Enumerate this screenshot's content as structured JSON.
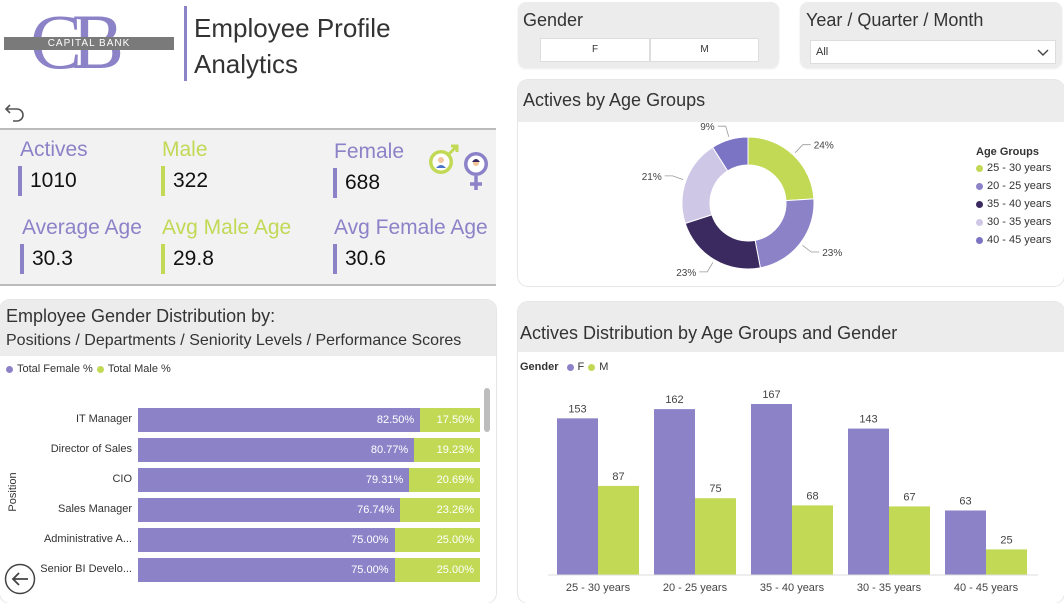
{
  "colors": {
    "purple": "#8c82c8",
    "lime": "#c1d955",
    "dark_purple": "#3b2a5f",
    "lavender": "#cfc7e6",
    "mid_purple": "#7b73c4",
    "panel_gray": "#ececec"
  },
  "logo": {
    "monogram": "CB",
    "bank_name": "CAPITAL BANK"
  },
  "header": {
    "title_line1": "Employee Profile",
    "title_line2": "Analytics"
  },
  "slicers": {
    "gender_title": "Gender",
    "gender_options": [
      "F",
      "M"
    ],
    "period_title": "Year / Quarter / Month",
    "period_selected": "All"
  },
  "kpis": {
    "actives_label": "Actives",
    "actives_value": "1010",
    "male_label": "Male",
    "male_value": "322",
    "female_label": "Female",
    "female_value": "688",
    "avg_age_label": "Average Age",
    "avg_age_value": "30.3",
    "avg_male_label": "Avg Male Age",
    "avg_male_value": "29.8",
    "avg_female_label": "Avg Female Age",
    "avg_female_value": "30.6"
  },
  "age_donut": {
    "title": "Actives by Age Groups",
    "legend_title": "Age Groups",
    "chart_data": {
      "type": "pie",
      "categories": [
        "25 - 30 years",
        "20 - 25 years",
        "35 - 40 years",
        "30 - 35 years",
        "40 - 45 years"
      ],
      "values": [
        24,
        23,
        23,
        21,
        9
      ],
      "labels": [
        "24%",
        "23%",
        "23%",
        "21%",
        "9%"
      ],
      "colors": [
        "#c1d955",
        "#8c82c8",
        "#3b2a5f",
        "#cfc7e6",
        "#7b73c4"
      ]
    }
  },
  "gender_dist": {
    "title_line1": "Employee Gender Distribution by:",
    "title_line2": "Positions / Departments / Seniority Levels / Performance Scores",
    "legend_female": "Total Female %",
    "legend_male": "Total Male %",
    "axis_label": "Position",
    "chart_data": {
      "type": "bar",
      "categories": [
        "IT Manager",
        "Director of Sales",
        "CIO",
        "Sales Manager",
        "Administrative A...",
        "Senior BI Develo..."
      ],
      "series": [
        {
          "name": "Total Female %",
          "values": [
            82.5,
            80.77,
            79.31,
            76.74,
            75.0,
            75.0
          ],
          "labels": [
            "82.50%",
            "80.77%",
            "79.31%",
            "76.74%",
            "75.00%",
            "75.00%"
          ]
        },
        {
          "name": "Total Male %",
          "values": [
            17.5,
            19.23,
            20.69,
            23.26,
            25.0,
            25.0
          ],
          "labels": [
            "17.50%",
            "19.23%",
            "20.69%",
            "23.26%",
            "25.00%",
            "25.00%"
          ]
        }
      ]
    }
  },
  "age_gender": {
    "title": "Actives Distribution by Age Groups and Gender",
    "legend_title": "Gender",
    "legend_f": "F",
    "legend_m": "M",
    "chart_data": {
      "type": "bar",
      "categories": [
        "25 - 30 years",
        "20 - 25 years",
        "35 - 40 years",
        "30 - 35 years",
        "40 - 45 years"
      ],
      "series": [
        {
          "name": "F",
          "values": [
            153,
            162,
            167,
            143,
            63
          ]
        },
        {
          "name": "M",
          "values": [
            87,
            75,
            68,
            67,
            25
          ]
        }
      ],
      "ylim": [
        0,
        167
      ]
    }
  }
}
